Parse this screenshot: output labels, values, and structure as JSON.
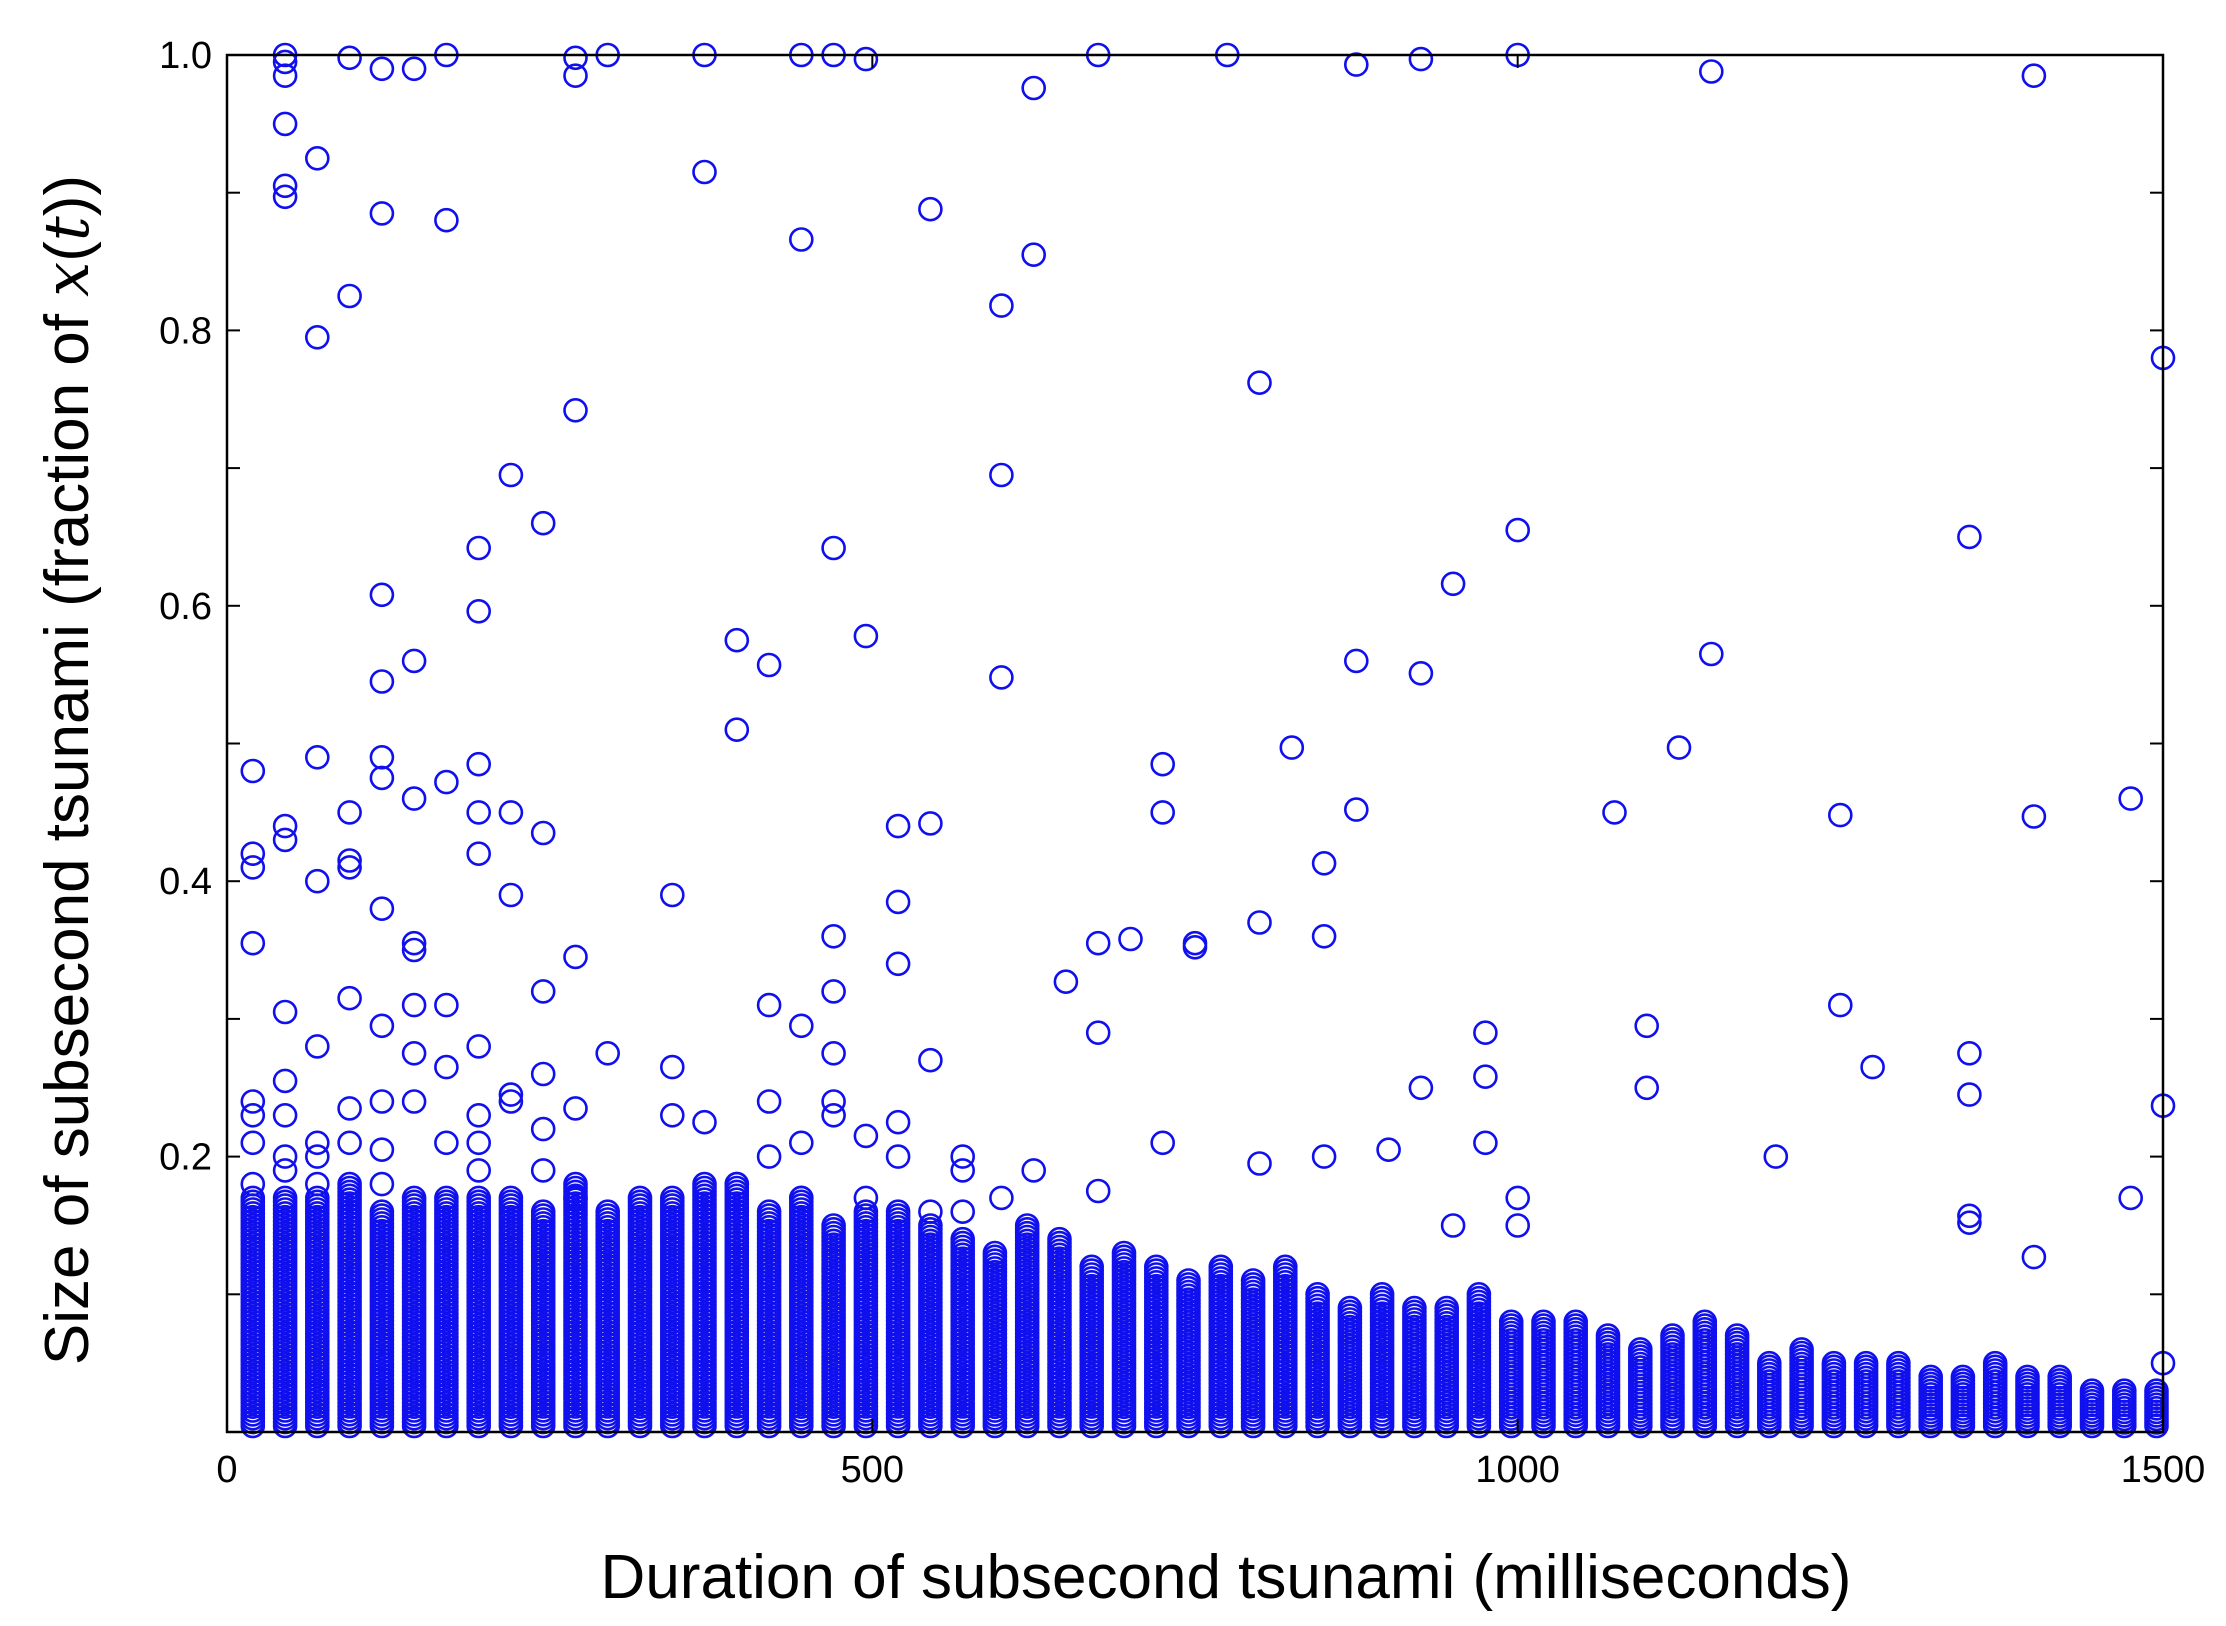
{
  "chart_data": {
    "type": "scatter",
    "title": "",
    "xlabel": "Duration of subsecond tsunami (milliseconds)",
    "ylabel": {
      "prefix": "Size of subsecond tsunami (fraction of ",
      "var": "x",
      "open": "(",
      "arg": "t",
      "close": "))"
    },
    "xlim": [
      0,
      1500
    ],
    "ylim": [
      0,
      1
    ],
    "xticks": [
      0,
      500,
      1000,
      1500
    ],
    "xtick_labels": [
      "0",
      "500",
      "1000",
      "1500"
    ],
    "yticks": [
      0.2,
      0.4,
      0.6,
      0.8,
      1.0
    ],
    "ytick_labels": [
      "0.2",
      "0.4",
      "0.6",
      "0.8",
      "1.0"
    ],
    "yminor_ticks": [
      0.1,
      0.3,
      0.5,
      0.7,
      0.9
    ],
    "marker": "open-circle",
    "color": "#1010ee",
    "grid": false,
    "legend": "none",
    "dense_band": {
      "note_free": true,
      "step_ms": 25,
      "max_size": [
        0.17,
        0.17,
        0.17,
        0.18,
        0.16,
        0.17,
        0.17,
        0.17,
        0.17,
        0.16,
        0.18,
        0.16,
        0.17,
        0.17,
        0.18,
        0.18,
        0.16,
        0.17,
        0.15,
        0.16,
        0.16,
        0.15,
        0.14,
        0.13,
        0.15,
        0.14,
        0.12,
        0.13,
        0.12,
        0.11,
        0.12,
        0.11,
        0.12,
        0.1,
        0.09,
        0.1,
        0.09,
        0.09,
        0.1,
        0.08,
        0.08,
        0.08,
        0.07,
        0.06,
        0.07,
        0.08,
        0.07,
        0.05,
        0.06,
        0.05,
        0.05,
        0.05,
        0.04,
        0.04,
        0.05,
        0.04,
        0.04,
        0.03,
        0.03,
        0.03,
        0.02
      ]
    },
    "x": [
      20,
      20,
      20,
      20,
      20,
      20,
      20,
      20,
      45,
      45,
      45,
      45,
      45,
      45,
      45,
      45,
      45,
      45,
      45,
      45,
      45,
      70,
      70,
      70,
      70,
      70,
      70,
      70,
      70,
      95,
      95,
      95,
      95,
      95,
      95,
      95,
      95,
      120,
      120,
      120,
      120,
      120,
      120,
      120,
      120,
      120,
      120,
      120,
      145,
      145,
      145,
      145,
      145,
      145,
      145,
      145,
      170,
      170,
      170,
      170,
      170,
      170,
      195,
      195,
      195,
      195,
      195,
      195,
      195,
      195,
      195,
      220,
      220,
      220,
      220,
      220,
      245,
      245,
      245,
      245,
      245,
      245,
      270,
      270,
      270,
      270,
      270,
      270,
      295,
      295,
      345,
      345,
      345,
      370,
      370,
      370,
      395,
      395,
      395,
      420,
      420,
      420,
      420,
      445,
      445,
      445,
      445,
      445,
      470,
      470,
      470,
      470,
      470,
      470,
      470,
      495,
      495,
      495,
      495,
      520,
      520,
      520,
      520,
      520,
      545,
      545,
      545,
      545,
      570,
      570,
      570,
      600,
      600,
      600,
      600,
      625,
      625,
      625,
      650,
      675,
      675,
      675,
      675,
      700,
      725,
      725,
      725,
      750,
      750,
      775,
      800,
      800,
      800,
      825,
      850,
      850,
      850,
      875,
      875,
      875,
      900,
      925,
      925,
      925,
      950,
      950,
      975,
      975,
      975,
      1000,
      1000,
      1000,
      1000,
      1075,
      1100,
      1100,
      1125,
      1150,
      1150,
      1200,
      1250,
      1250,
      1275,
      1350,
      1350,
      1350,
      1350,
      1350,
      1400,
      1400,
      1400,
      1475,
      1475,
      1500,
      1500,
      1500
    ],
    "y": [
      0.48,
      0.42,
      0.41,
      0.355,
      0.24,
      0.23,
      0.21,
      0.18,
      1.0,
      0.995,
      0.985,
      0.95,
      0.905,
      0.897,
      0.44,
      0.43,
      0.305,
      0.255,
      0.23,
      0.2,
      0.19,
      0.925,
      0.795,
      0.49,
      0.4,
      0.28,
      0.21,
      0.2,
      0.18,
      0.998,
      0.825,
      0.45,
      0.415,
      0.41,
      0.315,
      0.235,
      0.21,
      0.99,
      0.885,
      0.608,
      0.545,
      0.49,
      0.475,
      0.38,
      0.295,
      0.24,
      0.205,
      0.18,
      0.99,
      0.56,
      0.46,
      0.355,
      0.35,
      0.31,
      0.275,
      0.24,
      1.0,
      0.88,
      0.472,
      0.31,
      0.265,
      0.21,
      0.642,
      0.596,
      0.485,
      0.45,
      0.42,
      0.28,
      0.23,
      0.21,
      0.19,
      0.695,
      0.45,
      0.39,
      0.245,
      0.24,
      0.66,
      0.435,
      0.32,
      0.26,
      0.22,
      0.19,
      0.998,
      0.985,
      0.742,
      0.345,
      0.235,
      0.17,
      1.0,
      0.275,
      0.39,
      0.265,
      0.23,
      1.0,
      0.915,
      0.225,
      0.575,
      0.51,
      0.18,
      0.31,
      0.24,
      0.2,
      0.557,
      1.0,
      0.866,
      0.295,
      0.21,
      0.17,
      1.0,
      0.642,
      0.36,
      0.32,
      0.275,
      0.24,
      0.23,
      0.997,
      0.578,
      0.17,
      0.215,
      0.44,
      0.385,
      0.34,
      0.225,
      0.2,
      0.888,
      0.442,
      0.27,
      0.16,
      0.2,
      0.19,
      0.16,
      0.818,
      0.695,
      0.548,
      0.17,
      0.976,
      0.855,
      0.19,
      0.327,
      1.0,
      0.355,
      0.29,
      0.175,
      0.358,
      0.485,
      0.45,
      0.21,
      0.355,
      0.352,
      1.0,
      0.762,
      0.37,
      0.195,
      0.497,
      0.413,
      0.36,
      0.2,
      0.993,
      0.56,
      0.452,
      0.205,
      0.997,
      0.551,
      0.25,
      0.616,
      0.15,
      0.29,
      0.258,
      0.21,
      1.0,
      0.655,
      0.17,
      0.15,
      0.45,
      0.295,
      0.25,
      0.497,
      0.988,
      0.565,
      0.2,
      0.448,
      0.31,
      0.265,
      0.65,
      0.275,
      0.245,
      0.157,
      0.152,
      0.985,
      0.447,
      0.127,
      0.46,
      0.17,
      0.78,
      0.237,
      0.05
    ]
  }
}
